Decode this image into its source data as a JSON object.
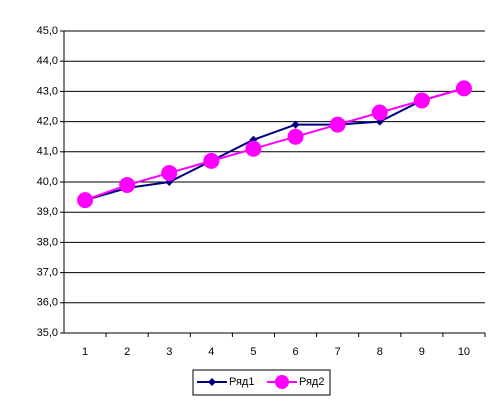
{
  "chart_data": {
    "type": "line",
    "categories": [
      "1",
      "2",
      "3",
      "4",
      "5",
      "6",
      "7",
      "8",
      "9",
      "10"
    ],
    "series": [
      {
        "name": "Ряд1",
        "color": "#000080",
        "marker": "diamond",
        "values": [
          39.4,
          39.8,
          40.0,
          40.7,
          41.4,
          41.9,
          41.9,
          42.0,
          42.7,
          43.1
        ]
      },
      {
        "name": "Ряд2",
        "color": "#ff00ff",
        "marker": "circle",
        "values": [
          39.4,
          39.9,
          40.3,
          40.7,
          41.1,
          41.5,
          41.9,
          42.3,
          42.7,
          43.1
        ]
      }
    ],
    "ylim": [
      35,
      45
    ],
    "yticks": [
      {
        "value": 35,
        "label": "35,0"
      },
      {
        "value": 36,
        "label": "36,0"
      },
      {
        "value": 37,
        "label": "37,0"
      },
      {
        "value": 38,
        "label": "38,0"
      },
      {
        "value": 39,
        "label": "39,0"
      },
      {
        "value": 40,
        "label": "40,0"
      },
      {
        "value": 41,
        "label": "41,0"
      },
      {
        "value": 42,
        "label": "42,0"
      },
      {
        "value": 43,
        "label": "43,0"
      },
      {
        "value": 44,
        "label": "44,0"
      },
      {
        "value": 45,
        "label": "45,0"
      }
    ],
    "grid": true,
    "legend": "bottom"
  }
}
